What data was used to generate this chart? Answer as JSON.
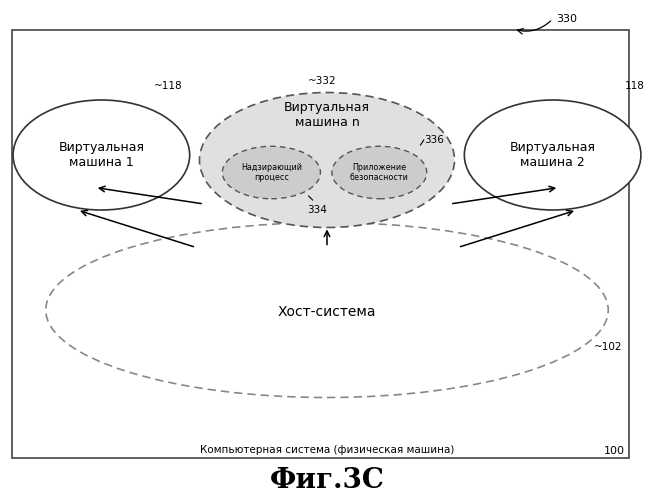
{
  "title": "Фиг.3C",
  "label_100": "100",
  "label_330": "330",
  "outer_label": "Компьютерная система (физическая машина)",
  "host_label": "Хост-система",
  "host_label_102": "~102",
  "vm1_label": "Виртуальная\nмашина 1",
  "vm2_label": "Виртуальная\nмашина 2",
  "vmn_label": "Виртуальная\nмашина n",
  "label_118_left": "~118",
  "label_118_right": "118",
  "label_332": "~332",
  "label_334": "334",
  "label_336": "336",
  "nadz_label": "Надзирающий\nпроцесс",
  "pril_label": "Приложение\nбезопасности"
}
